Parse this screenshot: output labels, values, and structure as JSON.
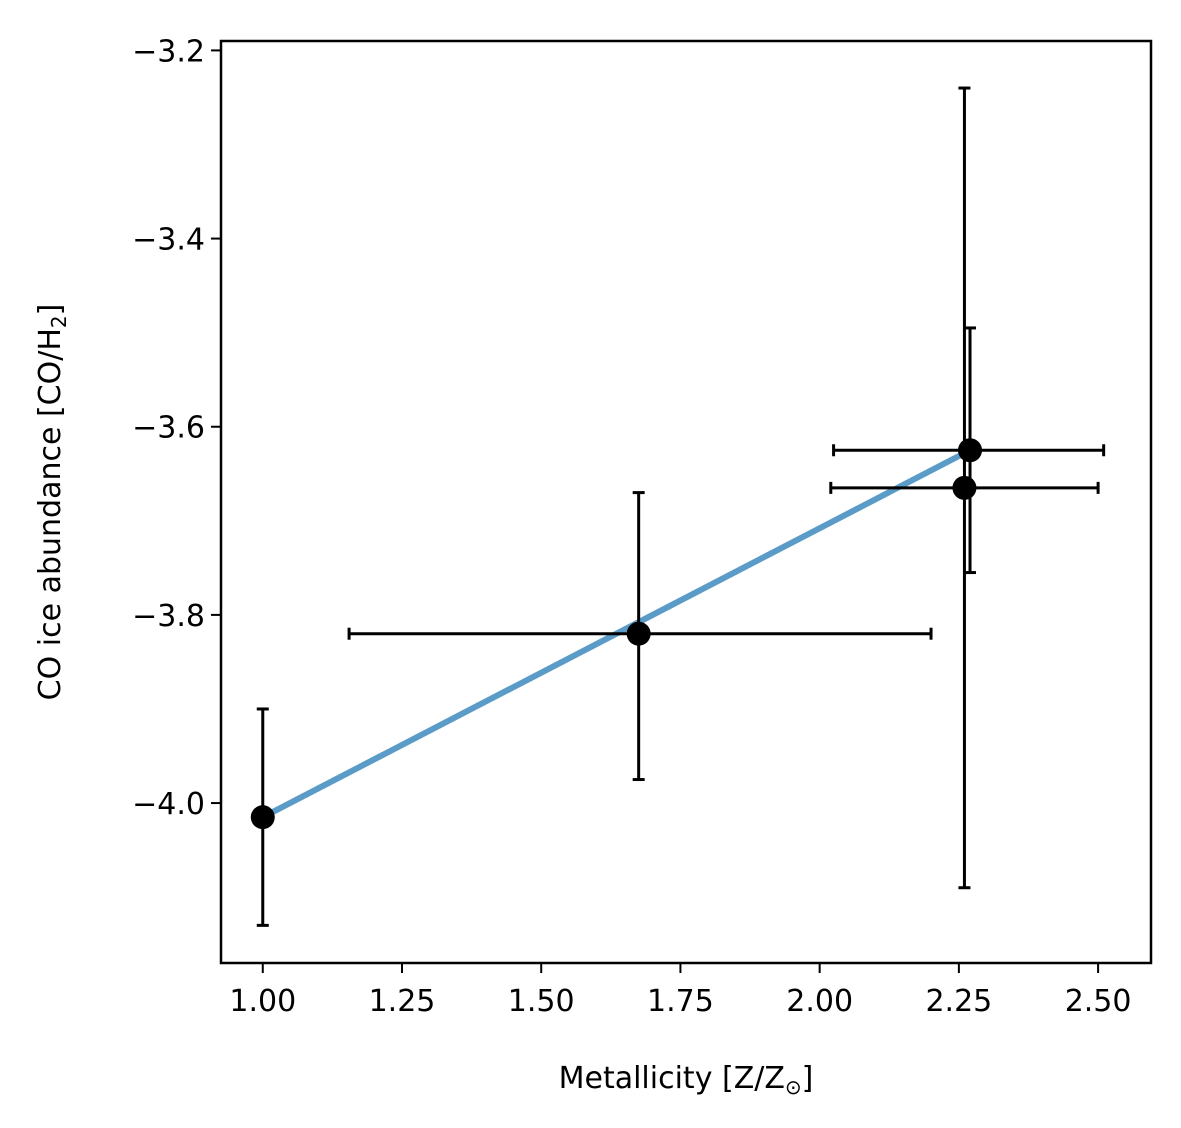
{
  "chart_data": {
    "type": "scatter",
    "xlabel": {
      "main": "Metallicity [Z/Z",
      "sub": "⊙",
      "end": "]"
    },
    "ylabel": {
      "main": "CO ice abundance [CO/H",
      "sub": "2",
      "end": "]"
    },
    "xlim": [
      0.925,
      2.595
    ],
    "ylim": [
      -4.17,
      -3.19
    ],
    "xticks": [
      1.0,
      1.25,
      1.5,
      1.75,
      2.0,
      2.25,
      2.5
    ],
    "xtick_labels": [
      "1.00",
      "1.25",
      "1.50",
      "1.75",
      "2.00",
      "2.25",
      "2.50"
    ],
    "yticks": [
      -4.0,
      -3.8,
      -3.6,
      -3.4,
      -3.2
    ],
    "ytick_labels": [
      "−4.0",
      "−3.8",
      "−3.6",
      "−3.4",
      "−3.2"
    ],
    "points": [
      {
        "x": 1.0,
        "y": -4.015,
        "xerr": [
          0,
          0
        ],
        "yerr": [
          0.115,
          0.115
        ]
      },
      {
        "x": 1.675,
        "y": -3.82,
        "xerr": [
          0.52,
          0.525
        ],
        "yerr": [
          0.155,
          0.15
        ]
      },
      {
        "x": 2.27,
        "y": -3.625,
        "xerr": [
          0.245,
          0.24
        ],
        "yerr": [
          0.13,
          0.13
        ]
      },
      {
        "x": 2.26,
        "y": -3.665,
        "xerr": [
          0.24,
          0.24
        ],
        "yerr": [
          0.425,
          0.425
        ]
      }
    ],
    "fit_line": {
      "x": [
        1.0,
        2.27
      ],
      "y": [
        -4.015,
        -3.625
      ],
      "color": "#5b9bc8"
    },
    "marker_color": "#000000",
    "grid": false
  }
}
